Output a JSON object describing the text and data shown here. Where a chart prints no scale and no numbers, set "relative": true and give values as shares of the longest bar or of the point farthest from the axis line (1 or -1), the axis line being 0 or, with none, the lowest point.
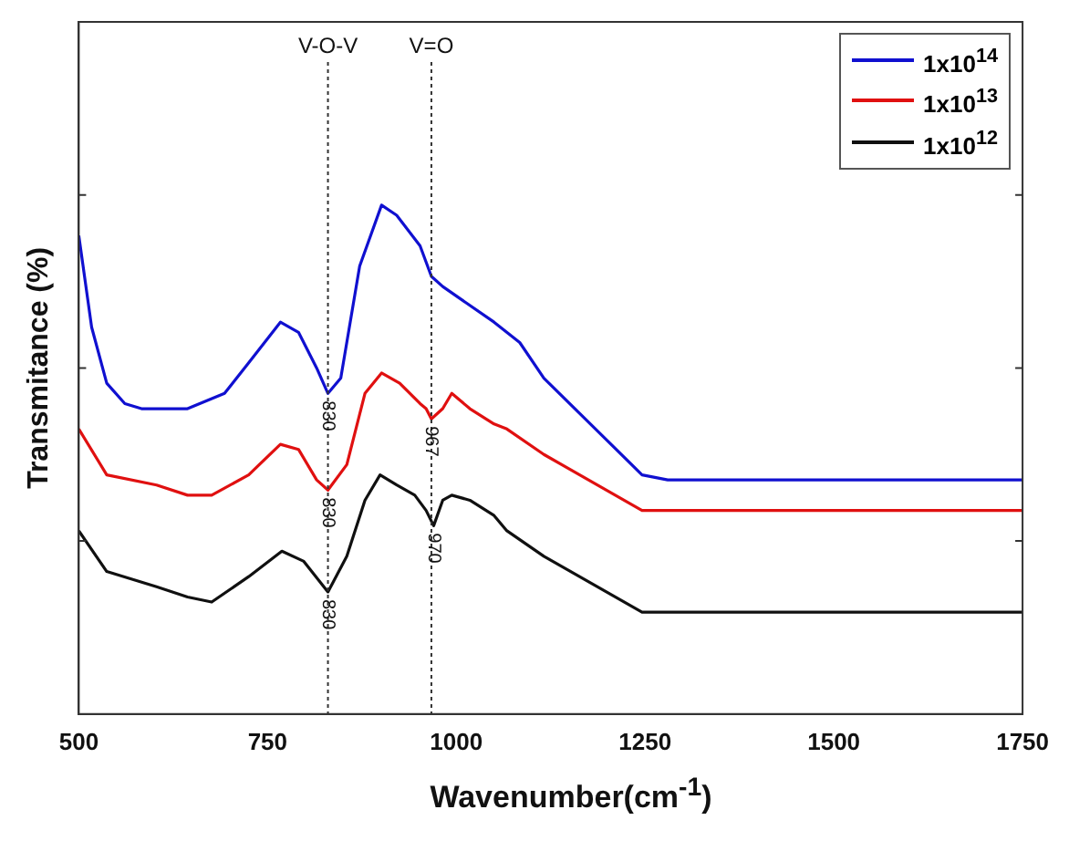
{
  "chart_data": {
    "type": "line",
    "relative": true,
    "xlabel": "Wavenumber(cm$^{-1}$)",
    "ylabel": "Transmitance (%)",
    "xlim": [
      500,
      1750
    ],
    "xticks": [
      500,
      750,
      1000,
      1250,
      1500,
      1750
    ],
    "tick_labels": "x",
    "grid": false,
    "legend": "top right",
    "marker": "none",
    "line_style": "solid",
    "series": [
      {
        "name": "1x10$^{14}$",
        "color": "#1010d0",
        "x": [
          500,
          517,
          537,
          561,
          583,
          644,
          693,
          725,
          767,
          791,
          815,
          830,
          847,
          872,
          901,
          921,
          952,
          967,
          982,
          1050,
          1084,
          1116,
          1246,
          1280,
          1500,
          1750
        ],
        "values": [
          0.94,
          0.76,
          0.65,
          0.61,
          0.6,
          0.6,
          0.63,
          0.69,
          0.77,
          0.75,
          0.68,
          0.63,
          0.66,
          0.88,
          1.0,
          0.98,
          0.92,
          0.86,
          0.84,
          0.77,
          0.73,
          0.66,
          0.47,
          0.46,
          0.46,
          0.46
        ]
      },
      {
        "name": "1x10$^{13}$",
        "color": "#e01010",
        "x": [
          500,
          537,
          603,
          644,
          676,
          725,
          767,
          791,
          815,
          830,
          855,
          879,
          901,
          925,
          952,
          960,
          967,
          982,
          994,
          1018,
          1050,
          1067,
          1116,
          1246,
          1500,
          1750
        ],
        "values": [
          0.56,
          0.47,
          0.45,
          0.43,
          0.43,
          0.47,
          0.53,
          0.52,
          0.46,
          0.44,
          0.49,
          0.63,
          0.67,
          0.65,
          0.61,
          0.6,
          0.58,
          0.6,
          0.63,
          0.6,
          0.57,
          0.56,
          0.51,
          0.4,
          0.4,
          0.4
        ]
      },
      {
        "name": "1x10$^{12}$",
        "color": "#101010",
        "x": [
          500,
          537,
          603,
          644,
          676,
          725,
          769,
          798,
          830,
          855,
          879,
          899,
          921,
          945,
          960,
          970,
          982,
          994,
          1018,
          1050,
          1067,
          1116,
          1246,
          1500,
          1750
        ],
        "values": [
          0.36,
          0.28,
          0.25,
          0.23,
          0.22,
          0.27,
          0.32,
          0.3,
          0.24,
          0.31,
          0.42,
          0.47,
          0.45,
          0.43,
          0.4,
          0.37,
          0.42,
          0.43,
          0.42,
          0.39,
          0.36,
          0.31,
          0.2,
          0.2,
          0.2
        ]
      }
    ],
    "ref_lines": [
      {
        "axis": "x",
        "value": 830,
        "label": "V-O-V",
        "color": "#333333",
        "line_style": "dotted"
      },
      {
        "axis": "x",
        "value": 967,
        "label": "V=O",
        "color": "#333333",
        "line_style": "dotted"
      }
    ],
    "annotations": [
      {
        "text": "830",
        "x": 830,
        "y": 0.63
      },
      {
        "text": "967",
        "x": 967,
        "y": 0.58
      },
      {
        "text": "830",
        "x": 830,
        "y": 0.44
      },
      {
        "text": "970",
        "x": 970,
        "y": 0.37
      },
      {
        "text": "830",
        "x": 830,
        "y": 0.24
      }
    ]
  }
}
